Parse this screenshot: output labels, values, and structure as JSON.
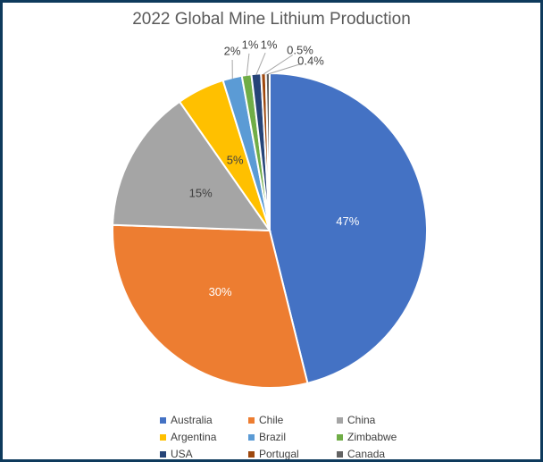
{
  "frame": {
    "border_color": "#0E3A5C",
    "background": "#FFFFFF"
  },
  "chart_data": {
    "type": "pie",
    "title": "2022 Global Mine Lithium Production",
    "title_color": "#595959",
    "legend_position": "bottom",
    "legend_columns": 3,
    "legend_text_color": "#404040",
    "leader_line_color": "#A6A6A6",
    "slices": [
      {
        "label": "Australia",
        "value": 47,
        "display": "47%",
        "color": "#4472C4",
        "label_color": "#FFFFFF",
        "label_placement": "inside"
      },
      {
        "label": "Chile",
        "value": 30,
        "display": "30%",
        "color": "#ED7D31",
        "label_color": "#FFFFFF",
        "label_placement": "inside"
      },
      {
        "label": "China",
        "value": 15,
        "display": "15%",
        "color": "#A5A5A5",
        "label_color": "#404040",
        "label_placement": "inside"
      },
      {
        "label": "Argentina",
        "value": 5,
        "display": "5%",
        "color": "#FFC000",
        "label_color": "#404040",
        "label_placement": "inside"
      },
      {
        "label": "Brazil",
        "value": 2,
        "display": "2%",
        "color": "#5B9BD5",
        "label_color": "#404040",
        "label_placement": "outside"
      },
      {
        "label": "Zimbabwe",
        "value": 1,
        "display": "1%",
        "color": "#70AD47",
        "label_color": "#404040",
        "label_placement": "outside"
      },
      {
        "label": "USA",
        "value": 1,
        "display": "1%",
        "color": "#264478",
        "label_color": "#404040",
        "label_placement": "outside"
      },
      {
        "label": "Portugal",
        "value": 0.5,
        "display": "0.5%",
        "color": "#9E480E",
        "label_color": "#404040",
        "label_placement": "outside"
      },
      {
        "label": "Canada",
        "value": 0.4,
        "display": "0.4%",
        "color": "#636363",
        "label_color": "#404040",
        "label_placement": "outside"
      }
    ]
  }
}
